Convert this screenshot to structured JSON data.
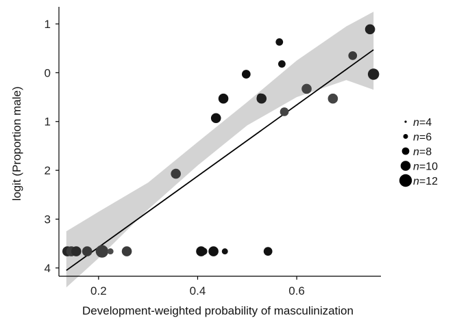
{
  "chart_data": {
    "type": "scatter",
    "xlabel": "Development-weighted probability of masculinization",
    "ylabel": "logit (Proportion male)",
    "xlim": [
      0.12,
      0.77
    ],
    "ylim": [
      -4.17,
      1.35
    ],
    "x_ticks": [
      0.2,
      0.4,
      0.6
    ],
    "x_tick_labels": [
      "0.2",
      "0.4",
      "0.6"
    ],
    "y_ticks": [
      1,
      0,
      -1,
      -2,
      -3,
      -4
    ],
    "y_tick_labels": [
      "1",
      "0",
      "1",
      "2",
      "3",
      "4"
    ],
    "grid": false,
    "legend_position": "right",
    "legend": {
      "prefix": "n",
      "entries": [
        {
          "n": 4,
          "label": "=4"
        },
        {
          "n": 6,
          "label": "=6"
        },
        {
          "n": 8,
          "label": "=8"
        },
        {
          "n": 10,
          "label": "=10"
        },
        {
          "n": 12,
          "label": "=12"
        }
      ]
    },
    "regression": {
      "x": [
        0.135,
        0.755
      ],
      "y": [
        -4.05,
        0.47
      ],
      "band_color": "#d3d3d3",
      "line_color": "#000000"
    },
    "band": [
      {
        "x": 0.135,
        "lo": -4.4,
        "hi": -3.25
      },
      {
        "x": 0.2,
        "lo": -3.8,
        "hi": -2.85
      },
      {
        "x": 0.3,
        "lo": -2.8,
        "hi": -2.25
      },
      {
        "x": 0.4,
        "lo": -1.9,
        "hi": -1.42
      },
      {
        "x": 0.5,
        "lo": -1.08,
        "hi": -0.6
      },
      {
        "x": 0.6,
        "lo": -0.5,
        "hi": 0.25
      },
      {
        "x": 0.7,
        "lo": -0.15,
        "hi": 0.95
      },
      {
        "x": 0.755,
        "lo": -0.35,
        "hi": 1.25
      }
    ],
    "points": [
      {
        "x": 0.137,
        "y": -3.66,
        "n": 10,
        "color": "#262626"
      },
      {
        "x": 0.145,
        "y": -3.66,
        "n": 10,
        "color": "#3a3a3a"
      },
      {
        "x": 0.155,
        "y": -3.66,
        "n": 10,
        "color": "#2b2b2b"
      },
      {
        "x": 0.177,
        "y": -3.66,
        "n": 10,
        "color": "#3a3a3a"
      },
      {
        "x": 0.207,
        "y": -3.66,
        "n": 12,
        "color": "#3d3d3d"
      },
      {
        "x": 0.224,
        "y": -3.66,
        "n": 7,
        "color": "#4a4a4a"
      },
      {
        "x": 0.257,
        "y": -3.66,
        "n": 10,
        "color": "#3b3b3b"
      },
      {
        "x": 0.356,
        "y": -2.07,
        "n": 10,
        "color": "#3b3b3b"
      },
      {
        "x": 0.407,
        "y": -3.66,
        "n": 10,
        "color": "#111111"
      },
      {
        "x": 0.412,
        "y": -3.66,
        "n": 8,
        "color": "#111111"
      },
      {
        "x": 0.432,
        "y": -3.66,
        "n": 10,
        "color": "#111111"
      },
      {
        "x": 0.455,
        "y": -3.66,
        "n": 7,
        "color": "#111111"
      },
      {
        "x": 0.542,
        "y": -3.66,
        "n": 9,
        "color": "#111111"
      },
      {
        "x": 0.437,
        "y": -0.93,
        "n": 10,
        "color": "#111111"
      },
      {
        "x": 0.452,
        "y": -0.53,
        "n": 10,
        "color": "#111111"
      },
      {
        "x": 0.498,
        "y": -0.03,
        "n": 9,
        "color": "#0d0d0d"
      },
      {
        "x": 0.527,
        "y": -0.5,
        "n": 8,
        "color": "#111111"
      },
      {
        "x": 0.529,
        "y": -0.53,
        "n": 10,
        "color": "#222222"
      },
      {
        "x": 0.565,
        "y": 0.63,
        "n": 8,
        "color": "#111111"
      },
      {
        "x": 0.57,
        "y": 0.18,
        "n": 8,
        "color": "#111111"
      },
      {
        "x": 0.575,
        "y": -0.8,
        "n": 9,
        "color": "#444444"
      },
      {
        "x": 0.62,
        "y": -0.33,
        "n": 10,
        "color": "#444444"
      },
      {
        "x": 0.673,
        "y": -0.53,
        "n": 10,
        "color": "#444444"
      },
      {
        "x": 0.713,
        "y": 0.35,
        "n": 9,
        "color": "#3a3a3a"
      },
      {
        "x": 0.748,
        "y": 0.89,
        "n": 10,
        "color": "#222222"
      },
      {
        "x": 0.755,
        "y": -0.03,
        "n": 11,
        "color": "#222222"
      }
    ]
  }
}
